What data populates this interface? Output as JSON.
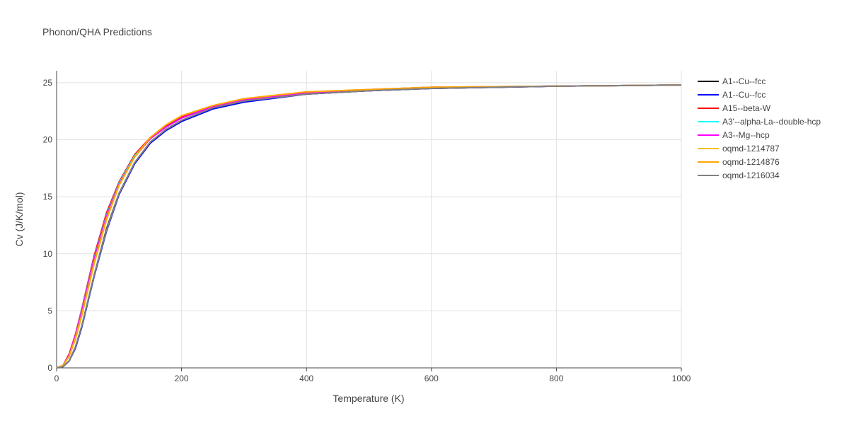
{
  "chart_data": {
    "type": "line",
    "title": "Phonon/QHA Predictions",
    "x_label": "Temperature (K)",
    "y_label": "Cv (J/K/mol)",
    "x": [
      0,
      10,
      20,
      30,
      40,
      60,
      80,
      100,
      125,
      150,
      175,
      200,
      250,
      300,
      400,
      500,
      600,
      800,
      1000
    ],
    "series": [
      {
        "name": "A1--Cu--fcc",
        "color": "#000000",
        "values": [
          0,
          0.1,
          0.6,
          1.8,
          3.6,
          8.1,
          12.2,
          15.3,
          18.0,
          19.8,
          20.9,
          21.7,
          22.8,
          23.4,
          24.0,
          24.3,
          24.5,
          24.7,
          24.8
        ]
      },
      {
        "name": "A1--Cu--fcc",
        "color": "#0000ff",
        "values": [
          0,
          0.1,
          0.6,
          1.7,
          3.5,
          8.0,
          12.0,
          15.2,
          17.9,
          19.7,
          20.8,
          21.6,
          22.7,
          23.3,
          24.0,
          24.3,
          24.5,
          24.7,
          24.8
        ]
      },
      {
        "name": "A15--beta-W",
        "color": "#ff0000",
        "values": [
          0,
          0.2,
          1.2,
          2.9,
          5.1,
          9.8,
          13.6,
          16.3,
          18.7,
          20.2,
          21.2,
          22.0,
          22.9,
          23.5,
          24.1,
          24.4,
          24.6,
          24.7,
          24.8
        ]
      },
      {
        "name": "A3'--alpha-La--double-hcp",
        "color": "#00ffff",
        "values": [
          0,
          0.2,
          1.1,
          2.8,
          5.0,
          9.6,
          13.4,
          16.2,
          18.6,
          20.1,
          21.1,
          21.9,
          22.9,
          23.5,
          24.1,
          24.4,
          24.6,
          24.7,
          24.8
        ]
      },
      {
        "name": "A3--Mg--hcp",
        "color": "#ff00ff",
        "values": [
          0,
          0.2,
          1.1,
          2.8,
          4.9,
          9.5,
          13.3,
          16.1,
          18.5,
          20.1,
          21.1,
          21.9,
          22.9,
          23.5,
          24.1,
          24.4,
          24.6,
          24.7,
          24.8
        ]
      },
      {
        "name": "oqmd-1214787",
        "color": "#f5c11f",
        "values": [
          0,
          0.2,
          1.0,
          2.6,
          4.6,
          9.2,
          13.1,
          16.0,
          18.5,
          20.2,
          21.3,
          22.1,
          23.0,
          23.6,
          24.2,
          24.4,
          24.6,
          24.7,
          24.8
        ]
      },
      {
        "name": "oqmd-1214876",
        "color": "#ffa500",
        "values": [
          0,
          0.2,
          1.0,
          2.5,
          4.5,
          9.1,
          13.0,
          16.0,
          18.5,
          20.2,
          21.3,
          22.1,
          23.0,
          23.6,
          24.2,
          24.4,
          24.6,
          24.7,
          24.8
        ]
      },
      {
        "name": "oqmd-1216034",
        "color": "#808080",
        "values": [
          0,
          0.1,
          0.6,
          1.8,
          3.6,
          8.1,
          12.1,
          15.3,
          18.0,
          19.8,
          20.9,
          21.7,
          22.8,
          23.4,
          24.0,
          24.3,
          24.5,
          24.7,
          24.8
        ]
      }
    ],
    "xlim": [
      0,
      1000
    ],
    "ylim": [
      0,
      26.05
    ],
    "xticks": [
      0,
      200,
      400,
      600,
      800,
      1000
    ],
    "yticks": [
      0,
      5,
      10,
      15,
      20,
      25
    ],
    "grid": true
  }
}
